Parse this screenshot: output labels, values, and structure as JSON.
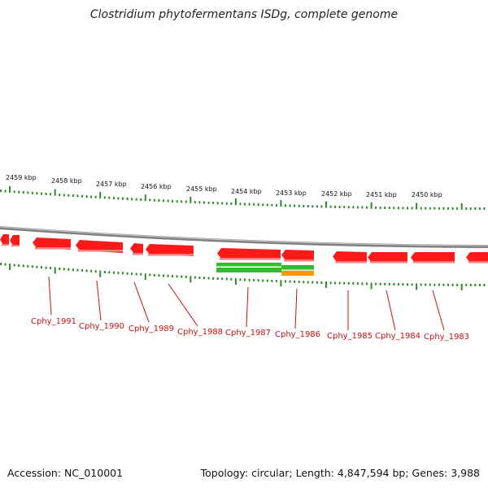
{
  "title": "Clostridium phytofermentans ISDg, complete genome",
  "footer": {
    "accession": "Accession: NC_010001",
    "summary": "Topology: circular; Length: 4,847,594 bp; Genes: 3,988"
  },
  "colors": {
    "gene": "#ff1a1a",
    "gene_shade": "#f08080",
    "backbone": "#808080",
    "tick": "#2e8b2e",
    "green_feature": "#33bb33",
    "orange_feature": "#ff9900",
    "label": "#cc1111"
  },
  "kbp_labels": [
    "2459 kbp",
    "2458 kbp",
    "2457 kbp",
    "2456 kbp",
    "2455 kbp",
    "2454 kbp",
    "2453 kbp",
    "2452 kbp",
    "2451 kbp",
    "2450 kbp"
  ],
  "gene_labels": [
    "Cphy_1991",
    "Cphy_1990",
    "Cphy_1989",
    "Cphy_1988",
    "Cphy_1987",
    "Cphy_1986",
    "Cphy_1985",
    "Cphy_1984",
    "Cphy_1983"
  ]
}
